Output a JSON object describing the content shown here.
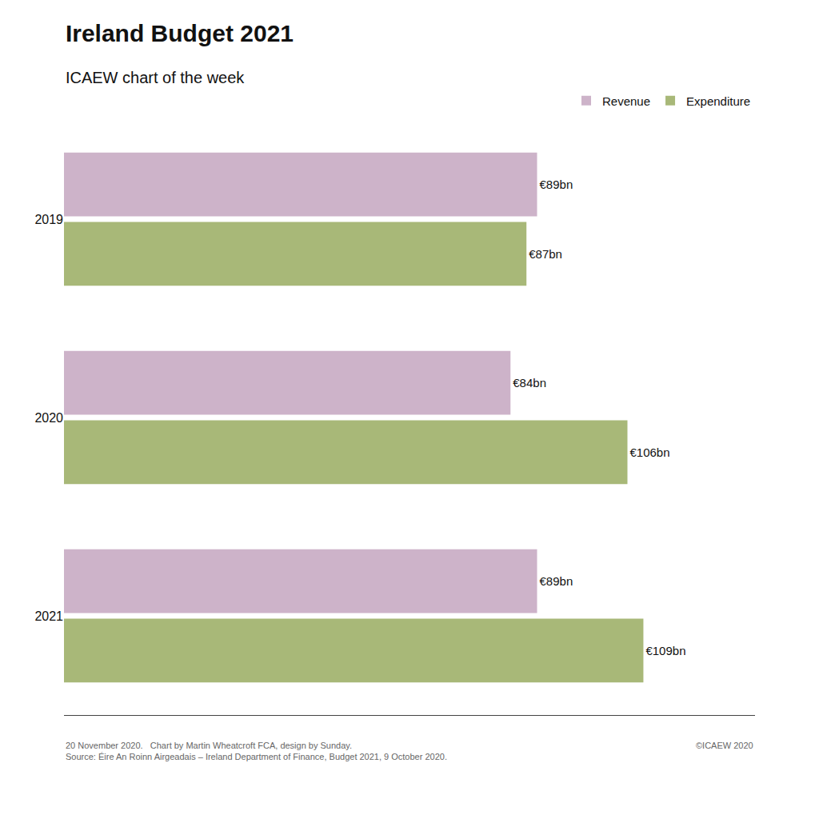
{
  "chart_data": {
    "type": "bar",
    "orientation": "horizontal",
    "title": "Ireland Budget 2021",
    "subtitle": "ICAEW chart of the week",
    "categories": [
      "2019",
      "2020",
      "2021"
    ],
    "series": [
      {
        "name": "Revenue",
        "color": "#cdb3c9",
        "values": [
          89,
          84,
          89
        ],
        "value_labels": [
          "€89bn",
          "€84bn",
          "€89bn"
        ]
      },
      {
        "name": "Expenditure",
        "color": "#a8b878",
        "values": [
          87,
          106,
          109
        ],
        "value_labels": [
          "€87bn",
          "€106bn",
          "€109bn"
        ]
      }
    ],
    "xlim": [
      0,
      130
    ],
    "data_labels": true,
    "tick_labels": "y",
    "grid": false,
    "legend": "top right",
    "annotations": [
      "20 November 2020.   Chart by Martin Wheatcroft FCA, design by Sunday.",
      "Source: Éire An Roinn Airgeadais – Ireland Department of Finance, Budget 2021, 9 October 2020.",
      "©ICAEW 2020"
    ]
  }
}
